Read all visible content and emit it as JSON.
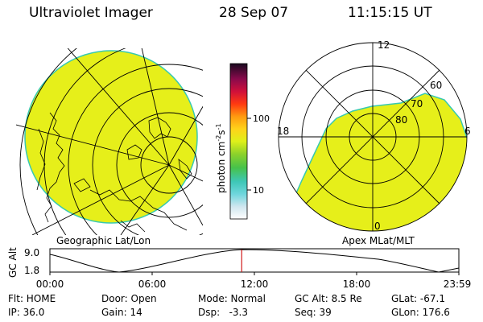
{
  "header": {
    "instrument": "Ultraviolet Imager",
    "date": "28 Sep 07",
    "time": "11:15:15 UT"
  },
  "left_panel": {
    "label": "Geographic Lat/Lon"
  },
  "right_panel": {
    "label": "Apex MLat/MLT",
    "mlt_labels": [
      "12",
      "18",
      "6",
      "0"
    ],
    "mlat_labels": [
      "60",
      "70",
      "80"
    ]
  },
  "colorbar": {
    "unit_label": "photon cm",
    "unit_exp1": "-2",
    "unit_s": "s",
    "unit_exp2": "-1",
    "tick_labels": [
      "100",
      "10"
    ]
  },
  "altitude_plot": {
    "ylabel": "GC Alt",
    "y_max_label": "9.0",
    "y_min_label": "1.8",
    "x_tick_labels": [
      "00:00",
      "06:00",
      "12:00",
      "18:00",
      "23:59"
    ],
    "current_time_fraction": 0.469
  },
  "info": {
    "row1": {
      "flt": "Flt: HOME",
      "door": "Door: Open",
      "mode": "Mode: Normal",
      "gcalt": "GC Alt: 8.5 Re",
      "glat": "GLat: -67.1"
    },
    "row2": {
      "ip": "IP: 36.0",
      "gain": "Gain: 14",
      "dsp": "Dsp:   -3.3",
      "seq": "Seq: 39",
      "glon": "GLon: 176.6"
    }
  },
  "colors": {
    "emission_fill": "#e6ef1a",
    "limb_edge": "#37c9b0",
    "time_marker": "#d11a1a"
  }
}
